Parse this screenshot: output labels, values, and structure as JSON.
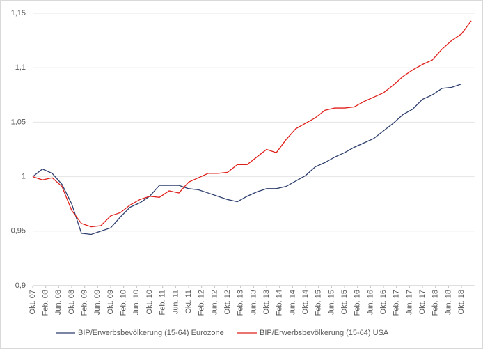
{
  "chart_data": {
    "type": "line",
    "x": [
      0,
      3,
      6,
      9,
      12,
      15,
      18,
      21,
      24,
      27,
      30,
      33,
      36,
      39,
      42,
      45,
      48,
      51,
      54,
      57,
      60,
      63,
      66,
      69,
      72,
      75,
      78,
      81,
      84,
      87,
      90,
      93,
      96,
      99,
      102,
      105,
      108,
      111,
      114,
      117,
      120,
      123,
      126,
      129,
      132,
      135
    ],
    "series": [
      {
        "name": "BIP/Erwerbsbevölkerung (15-64) Eurozone",
        "color": "#2e3f6e",
        "values": [
          1.0,
          1.007,
          1.003,
          0.993,
          0.975,
          0.948,
          0.947,
          0.95,
          0.953,
          0.963,
          0.972,
          0.976,
          0.982,
          0.992,
          0.992,
          0.992,
          0.989,
          0.988,
          0.985,
          0.982,
          0.979,
          0.977,
          0.982,
          0.986,
          0.989,
          0.989,
          0.991,
          0.996,
          1.001,
          1.009,
          1.013,
          1.018,
          1.022,
          1.027,
          1.031,
          1.035,
          1.042,
          1.049,
          1.057,
          1.062,
          1.071,
          1.075,
          1.081,
          1.082,
          1.085,
          null
        ]
      },
      {
        "name": "BIP/Erwerbsbevölkerung (15-64) USA",
        "color": "#e0201b",
        "values": [
          1.0,
          0.997,
          0.999,
          0.991,
          0.969,
          0.957,
          0.954,
          0.955,
          0.964,
          0.967,
          0.974,
          0.979,
          0.982,
          0.981,
          0.987,
          0.985,
          0.995,
          0.999,
          1.003,
          1.003,
          1.004,
          1.011,
          1.011,
          1.018,
          1.025,
          1.022,
          1.034,
          1.044,
          1.049,
          1.054,
          1.061,
          1.063,
          1.063,
          1.064,
          1.069,
          1.073,
          1.077,
          1.084,
          1.092,
          1.098,
          1.103,
          1.107,
          1.117,
          1.125,
          1.131,
          1.143
        ]
      }
    ],
    "xlim": [
      0,
      136
    ],
    "xticks": [
      {
        "value": 0,
        "label": "Okt. 07"
      },
      {
        "value": 4,
        "label": "Feb. 08"
      },
      {
        "value": 8,
        "label": "Jun. 08"
      },
      {
        "value": 12,
        "label": "Okt. 08"
      },
      {
        "value": 16,
        "label": "Feb. 09"
      },
      {
        "value": 20,
        "label": "Jun. 09"
      },
      {
        "value": 24,
        "label": "Okt. 09"
      },
      {
        "value": 28,
        "label": "Feb. 10"
      },
      {
        "value": 32,
        "label": "Jun. 10"
      },
      {
        "value": 36,
        "label": "Okt. 10"
      },
      {
        "value": 40,
        "label": "Feb. 11"
      },
      {
        "value": 44,
        "label": "Jun. 11"
      },
      {
        "value": 48,
        "label": "Okt. 11"
      },
      {
        "value": 52,
        "label": "Feb. 12"
      },
      {
        "value": 56,
        "label": "Jun. 12"
      },
      {
        "value": 60,
        "label": "Okt. 12"
      },
      {
        "value": 64,
        "label": "Feb. 13"
      },
      {
        "value": 68,
        "label": "Jun. 13"
      },
      {
        "value": 72,
        "label": "Okt. 13"
      },
      {
        "value": 76,
        "label": "Feb. 14"
      },
      {
        "value": 80,
        "label": "Jun. 14"
      },
      {
        "value": 84,
        "label": "Okt. 14"
      },
      {
        "value": 88,
        "label": "Feb. 15"
      },
      {
        "value": 92,
        "label": "Jun. 15"
      },
      {
        "value": 96,
        "label": "Okt. 15"
      },
      {
        "value": 100,
        "label": "Feb. 16"
      },
      {
        "value": 104,
        "label": "Jun. 16"
      },
      {
        "value": 108,
        "label": "Okt. 16"
      },
      {
        "value": 112,
        "label": "Feb. 17"
      },
      {
        "value": 116,
        "label": "Jun. 17"
      },
      {
        "value": 120,
        "label": "Okt. 17"
      },
      {
        "value": 124,
        "label": "Feb. 18"
      },
      {
        "value": 128,
        "label": "Jun. 18"
      },
      {
        "value": 132,
        "label": "Okt. 18"
      }
    ],
    "ylim": [
      0.9,
      1.15
    ],
    "yticks": [
      {
        "value": 0.9,
        "label": "0,9"
      },
      {
        "value": 0.95,
        "label": "0,95"
      },
      1,
      {
        "value": 1.05,
        "label": "1,05"
      },
      {
        "value": 1.1,
        "label": "1,1"
      },
      {
        "value": 1.15,
        "label": "1,15"
      }
    ],
    "grid": true,
    "legend": "bottom"
  }
}
